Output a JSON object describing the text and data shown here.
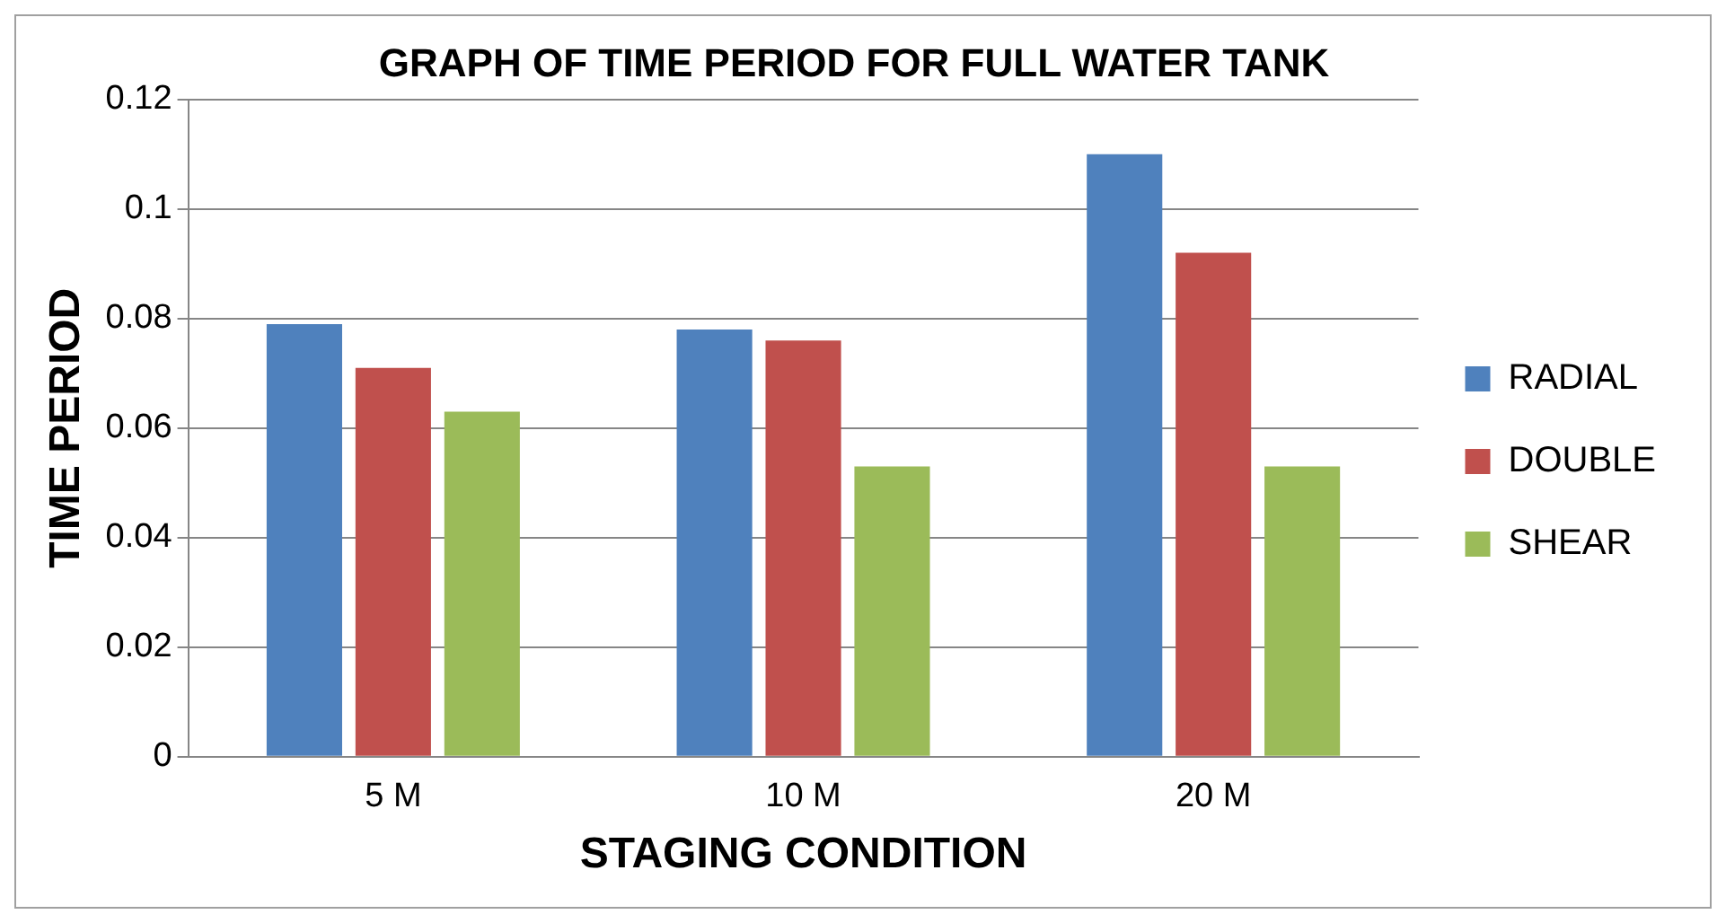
{
  "chart_data": {
    "type": "bar",
    "title": "GRAPH OF TIME PERIOD FOR FULL WATER TANK",
    "xlabel": "STAGING CONDITION",
    "ylabel": "TIME PERIOD",
    "categories": [
      "5 M",
      "10 M",
      "20 M"
    ],
    "series": [
      {
        "name": "RADIAL",
        "color": "#4f81bd",
        "values": [
          0.079,
          0.078,
          0.11
        ]
      },
      {
        "name": "DOUBLE",
        "color": "#c0504d",
        "values": [
          0.071,
          0.076,
          0.092
        ]
      },
      {
        "name": "SHEAR",
        "color": "#9bbb59",
        "values": [
          0.063,
          0.053,
          0.053
        ]
      }
    ],
    "ylim": [
      0,
      0.12
    ],
    "yticks": [
      0,
      0.02,
      0.04,
      0.06,
      0.08,
      0.1,
      0.12
    ],
    "grid": "y",
    "legend": "right"
  }
}
